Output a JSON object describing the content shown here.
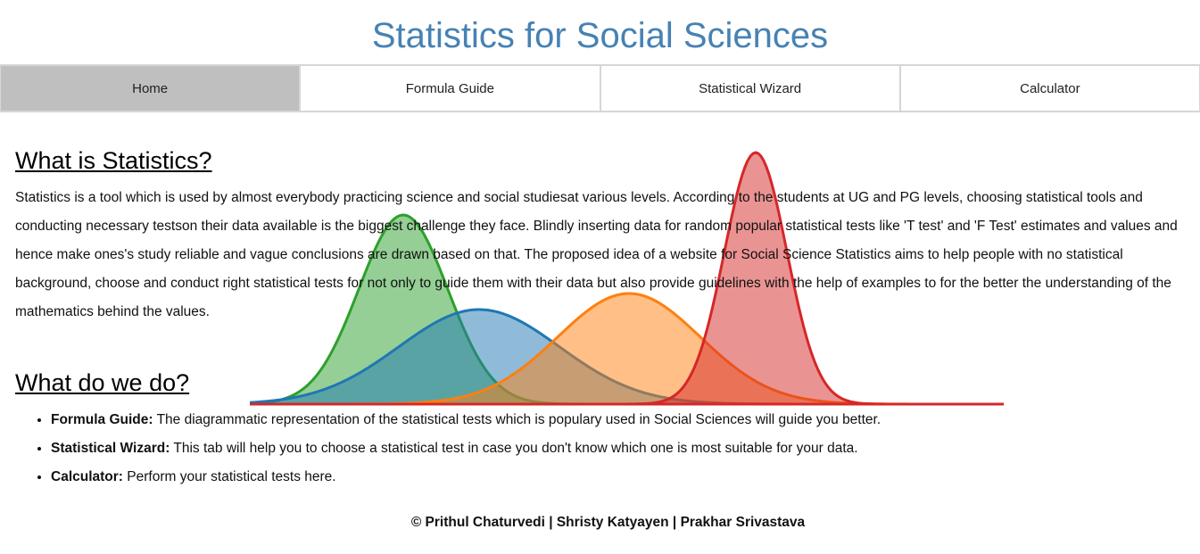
{
  "header": {
    "title": "Statistics for Social Sciences"
  },
  "nav": {
    "items": [
      {
        "label": "Home",
        "active": true
      },
      {
        "label": "Formula Guide",
        "active": false
      },
      {
        "label": "Statistical Wizard",
        "active": false
      },
      {
        "label": "Calculator",
        "active": false
      }
    ]
  },
  "background_chart": {
    "curves": [
      {
        "color": "#2ca02c",
        "fill": "#2ca02c"
      },
      {
        "color": "#1f77b4",
        "fill": "#1f77b4"
      },
      {
        "color": "#ff7f0e",
        "fill": "#ff7f0e"
      },
      {
        "color": "#d62728",
        "fill": "#d62728"
      }
    ]
  },
  "main": {
    "section1": {
      "heading": "What is Statistics?",
      "paragraph": "Statistics is a tool which is used by almost everybody practicing science and social studiesat various levels. According to the students at UG and PG levels, choosing statistical tools and conducting necessary testson their data available is the biggest challenge they face. Blindly inserting data for random popular statistical tests like 'T test' and 'F Test' estimates and values and hence make ones's study reliable and vague conclusions are drawn based on that. The proposed idea of a website for Social Science Statistics aims to help people with no statistical background, choose and conduct right statistical tests for not only to guide them with their data but also provide guidelines with the help of examples to for the better the understanding of the mathematics behind the values."
    },
    "section2": {
      "heading": "What do we do?",
      "items": [
        {
          "term": "Formula Guide:",
          "desc": " The diagrammatic representation of the statistical tests which is populary used in Social Sciences will guide you better."
        },
        {
          "term": "Statistical Wizard:",
          "desc": " This tab will help you to choose a statistical test in case you don't know which one is most suitable for your data."
        },
        {
          "term": "Calculator:",
          "desc": " Perform your statistical tests here."
        }
      ]
    }
  },
  "footer": {
    "text": "© Prithul Chaturvedi | Shristy Katyayen | Prakhar Srivastava"
  }
}
